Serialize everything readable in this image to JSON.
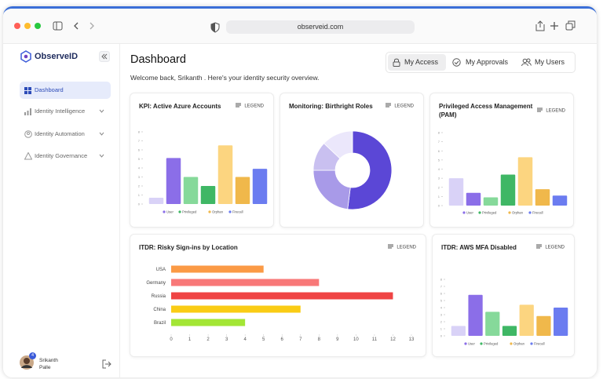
{
  "browser": {
    "url": "observeid.com"
  },
  "sidebar": {
    "logo": "ObserveID",
    "nav": [
      "Dashboard",
      "Identity Intelligence",
      "Identity Automation",
      "Identity Governance"
    ],
    "user": {
      "name": "Srikanth Palle",
      "badge": 4
    }
  },
  "header": {
    "title": "Dashboard",
    "subtitle": "Welcome back, Srikanth . Here's your identity security overview.",
    "tabs": [
      "My Access",
      "My Approvals",
      "My Users"
    ]
  },
  "chart_data": [
    {
      "type": "bar",
      "title": "KPI: Active Azure Accounts",
      "legend_button": "LEGEND",
      "values": [
        0.7,
        5.1,
        3,
        2,
        6.5,
        3,
        3.9
      ],
      "colors": [
        "#d9d2f7",
        "#8b6ee8",
        "#86d99a",
        "#3fb765",
        "#fcd580",
        "#f0b84b",
        "#6b7cf0"
      ],
      "ylim": [
        0,
        8
      ],
      "yticks": [
        0,
        1,
        2,
        3,
        4,
        5,
        6,
        7,
        8
      ],
      "legend": [
        {
          "name": "User",
          "color": "#8b6ee8"
        },
        {
          "name": "Privileged",
          "color": "#3fb765"
        },
        {
          "name": "Orphan",
          "color": "#f0b84b"
        },
        {
          "name": "Firecall",
          "color": "#6b7cf0"
        }
      ]
    },
    {
      "type": "donut",
      "title": "Monitoring: Birthright Roles",
      "legend_button": "LEGEND",
      "values": [
        52,
        23,
        12,
        13
      ],
      "colors": [
        "#5b47d6",
        "#a89ae8",
        "#c9c0f0",
        "#ebe7fb"
      ]
    },
    {
      "type": "bar",
      "title": "Privileged Access Management (PAM)",
      "legend_button": "LEGEND",
      "values": [
        3,
        1.4,
        0.9,
        3.4,
        5.3,
        1.8,
        1.1
      ],
      "colors": [
        "#d9d2f7",
        "#8b6ee8",
        "#86d99a",
        "#3fb765",
        "#fcd580",
        "#f0b84b",
        "#6b7cf0"
      ],
      "ylim": [
        0,
        8
      ],
      "yticks": [
        0,
        1,
        2,
        3,
        4,
        5,
        6,
        7,
        8
      ],
      "legend": [
        {
          "name": "User",
          "color": "#8b6ee8"
        },
        {
          "name": "Privileged",
          "color": "#3fb765"
        },
        {
          "name": "Orphan",
          "color": "#f0b84b"
        },
        {
          "name": "Firecall",
          "color": "#6b7cf0"
        }
      ]
    },
    {
      "type": "hbar",
      "title": "ITDR: Risky Sign-ins by Location",
      "legend_button": "LEGEND",
      "categories": [
        "USA",
        "Germany",
        "Russia",
        "China",
        "Brazil"
      ],
      "values": [
        5,
        8,
        12,
        7,
        4
      ],
      "colors": [
        "#fb9a45",
        "#f87878",
        "#ef4444",
        "#facc15",
        "#a3e635"
      ],
      "xlim": [
        0,
        13
      ],
      "xticks": [
        0,
        1,
        2,
        3,
        4,
        5,
        6,
        7,
        8,
        9,
        10,
        11,
        12,
        13
      ]
    },
    {
      "type": "bar",
      "title": "ITDR: AWS MFA Disabled",
      "legend_button": "LEGEND",
      "values": [
        1.4,
        5.8,
        3.4,
        1.4,
        4.4,
        2.8,
        4
      ],
      "colors": [
        "#d9d2f7",
        "#8b6ee8",
        "#86d99a",
        "#3fb765",
        "#fcd580",
        "#f0b84b",
        "#6b7cf0"
      ],
      "ylim": [
        0,
        8
      ],
      "yticks": [
        0,
        1,
        2,
        3,
        4,
        5,
        6,
        7,
        8
      ],
      "legend": [
        {
          "name": "User",
          "color": "#8b6ee8"
        },
        {
          "name": "Privileged",
          "color": "#3fb765"
        },
        {
          "name": "Orphan",
          "color": "#f0b84b"
        },
        {
          "name": "Firecall",
          "color": "#6b7cf0"
        }
      ]
    }
  ]
}
